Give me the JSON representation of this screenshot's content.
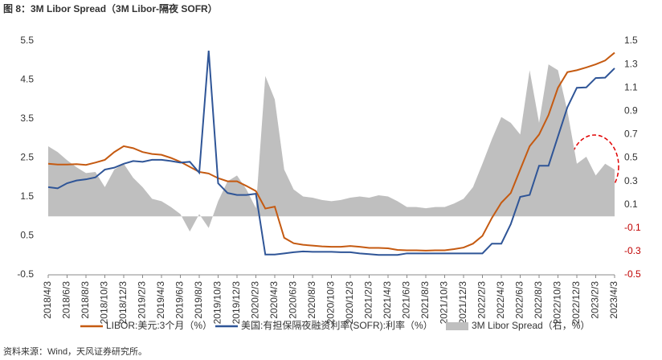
{
  "chart_data": {
    "type": "line",
    "title": "图 8：3M Libor Spread（3M Libor-隔夜 SOFR）",
    "source": "资料来源：Wind，天风证券研究所。",
    "categories": [
      "2018/4/3",
      null,
      "2018/6/3",
      null,
      "2018/8/3",
      null,
      "2018/10/3",
      null,
      "2018/12/3",
      null,
      "2019/2/3",
      null,
      "2019/4/3",
      null,
      "2019/6/3",
      null,
      "2019/8/3",
      null,
      "2019/10/3",
      null,
      "2019/12/3",
      null,
      "2020/2/3",
      null,
      "2020/4/3",
      null,
      "2020/6/3",
      null,
      "2020/8/3",
      null,
      "2020/10/3",
      null,
      "2020/12/3",
      null,
      "2021/2/3",
      null,
      "2021/4/3",
      null,
      "2021/6/3",
      null,
      "2021/8/3",
      null,
      "2021/10/3",
      null,
      "2021/12/3",
      null,
      "2022/2/3",
      null,
      "2022/4/3",
      null,
      "2022/6/3",
      null,
      "2022/8/3",
      null,
      "2022/10/3",
      null,
      "2022/12/3",
      null,
      "2023/2/3",
      null,
      "2023/4/3"
    ],
    "series": [
      {
        "name": "3M Libor Spread（右，%）",
        "color": "#bfbfbf",
        "kind": "area",
        "axis": "y2",
        "values": [
          0.6,
          0.55,
          0.48,
          0.42,
          0.37,
          0.38,
          0.25,
          0.4,
          0.45,
          0.33,
          0.25,
          0.15,
          0.13,
          0.08,
          0.02,
          -0.13,
          0.02,
          -0.1,
          0.13,
          0.3,
          0.35,
          0.23,
          0.07,
          1.2,
          1.0,
          0.4,
          0.23,
          0.17,
          0.16,
          0.14,
          0.13,
          0.14,
          0.16,
          0.17,
          0.16,
          0.18,
          0.17,
          0.13,
          0.08,
          0.08,
          0.07,
          0.08,
          0.08,
          0.11,
          0.15,
          0.25,
          0.45,
          0.66,
          0.85,
          0.8,
          0.7,
          1.25,
          0.8,
          1.3,
          1.25,
          0.9,
          0.45,
          0.51,
          0.35,
          0.45,
          0.4
        ]
      },
      {
        "name": "LIBOR:美元:3个月（%）",
        "color": "#c55a11",
        "kind": "line",
        "values": [
          2.35,
          2.33,
          2.33,
          2.34,
          2.32,
          2.38,
          2.45,
          2.65,
          2.8,
          2.75,
          2.65,
          2.6,
          2.58,
          2.5,
          2.4,
          2.27,
          2.14,
          2.1,
          1.98,
          1.9,
          1.9,
          1.78,
          1.65,
          1.2,
          1.25,
          0.45,
          0.31,
          0.27,
          0.25,
          0.23,
          0.22,
          0.22,
          0.24,
          0.22,
          0.19,
          0.19,
          0.18,
          0.14,
          0.13,
          0.13,
          0.12,
          0.13,
          0.13,
          0.16,
          0.2,
          0.3,
          0.5,
          0.96,
          1.35,
          1.6,
          2.2,
          2.8,
          3.1,
          3.6,
          4.3,
          4.7,
          4.75,
          4.82,
          4.9,
          5.0,
          5.2
        ]
      },
      {
        "name": "美国:有担保隔夜融资利率(SOFR):利率（%）",
        "color": "#2f5597",
        "kind": "line",
        "values": [
          1.75,
          1.72,
          1.85,
          1.92,
          1.95,
          2.0,
          2.2,
          2.25,
          2.35,
          2.42,
          2.4,
          2.45,
          2.45,
          2.42,
          2.38,
          2.4,
          2.12,
          5.25,
          1.85,
          1.6,
          1.55,
          1.55,
          1.58,
          0.02,
          0.02,
          0.05,
          0.08,
          0.1,
          0.09,
          0.09,
          0.09,
          0.08,
          0.08,
          0.05,
          0.03,
          0.01,
          0.01,
          0.01,
          0.05,
          0.05,
          0.05,
          0.05,
          0.05,
          0.05,
          0.05,
          0.05,
          0.05,
          0.3,
          0.3,
          0.8,
          1.5,
          1.55,
          2.3,
          2.3,
          3.05,
          3.8,
          4.3,
          4.31,
          4.55,
          4.56,
          4.8
        ]
      }
    ],
    "ylim": [
      -0.5,
      5.5
    ],
    "yticks": [
      -0.5,
      0.5,
      1.5,
      2.5,
      3.5,
      4.5,
      5.5
    ],
    "y2lim": [
      -0.5,
      1.5
    ],
    "y2ticks": [
      -0.5,
      -0.3,
      -0.1,
      0.1,
      0.3,
      0.5,
      0.7,
      0.9,
      1.1,
      1.3,
      1.5
    ],
    "y2_negative_tick_color": "#c00000",
    "grid": false
  }
}
